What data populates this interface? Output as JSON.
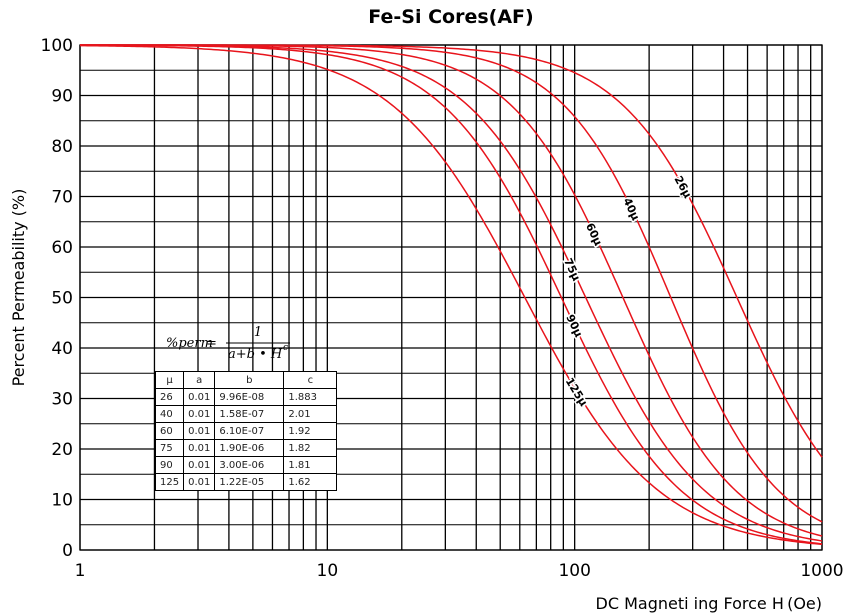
{
  "chart_data": {
    "type": "line",
    "title": "Fe-Si Cores(AF)",
    "xlabel": "DC Magneti  ing Force H (Oe)",
    "ylabel": "Percent Permeability (%)",
    "xscale": "log",
    "xlim": [
      1,
      1000
    ],
    "ylim": [
      0,
      100
    ],
    "x_ticks": [
      "1",
      "10",
      "100",
      "1000"
    ],
    "y_ticks": [
      "0",
      "10",
      "20",
      "30",
      "40",
      "50",
      "60",
      "70",
      "80",
      "90",
      "100"
    ],
    "grid": true,
    "formula": {
      "lhs": "%perm",
      "numerator": "1",
      "denominator": "a+b • H",
      "exponent": "c"
    },
    "table": {
      "headers": [
        "μ",
        "a",
        "b",
        "c"
      ],
      "rows": [
        [
          "26",
          "0.01",
          "9.96E-08",
          "1.883"
        ],
        [
          "40",
          "0.01",
          "1.58E-07",
          "2.01"
        ],
        [
          "60",
          "0.01",
          "6.10E-07",
          "1.92"
        ],
        [
          "75",
          "0.01",
          "1.90E-06",
          "1.82"
        ],
        [
          "90",
          "0.01",
          "3.00E-06",
          "1.81"
        ],
        [
          "125",
          "0.01",
          "1.22E-05",
          "1.62"
        ]
      ]
    },
    "series": [
      {
        "name": "26μ",
        "a": 0.01,
        "b": 9.96e-08,
        "c": 1.883,
        "label_x": 275
      },
      {
        "name": "40μ",
        "a": 0.01,
        "b": 1.58e-07,
        "c": 2.01,
        "label_x": 170
      },
      {
        "name": "60μ",
        "a": 0.01,
        "b": 6.1e-07,
        "c": 1.92,
        "label_x": 120
      },
      {
        "name": "75μ",
        "a": 0.01,
        "b": 1.9e-06,
        "c": 1.82,
        "label_x": 98
      },
      {
        "name": "90μ",
        "a": 0.01,
        "b": 3e-06,
        "c": 1.81,
        "label_x": 100
      },
      {
        "name": "125μ",
        "a": 0.01,
        "b": 1.22e-05,
        "c": 1.62,
        "label_x": 102
      }
    ],
    "line_color": "#e8141c"
  }
}
